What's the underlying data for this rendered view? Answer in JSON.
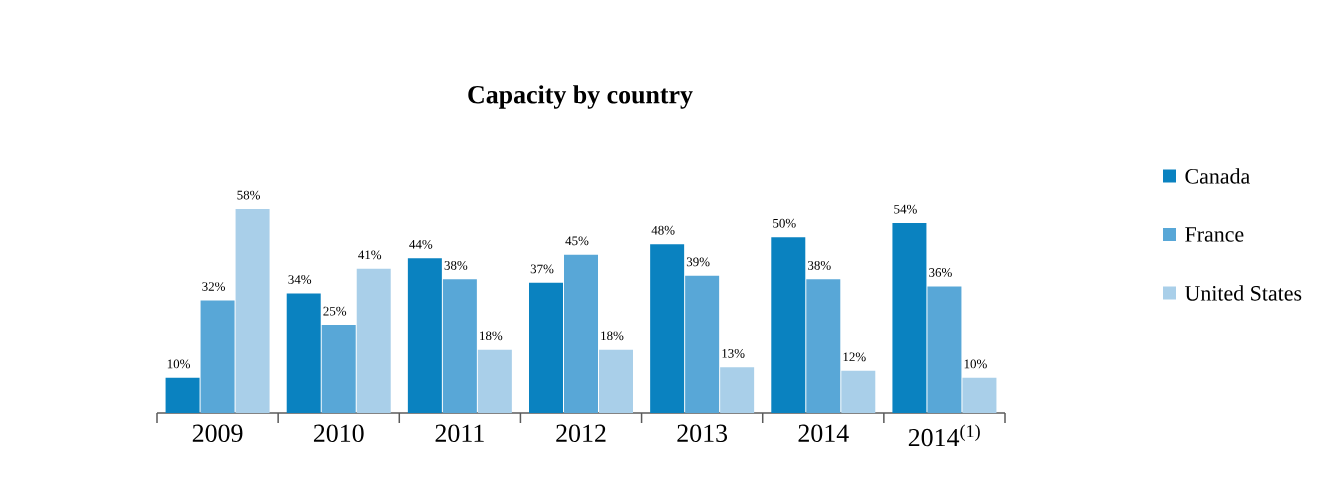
{
  "chart_data": {
    "type": "bar",
    "title": "Capacity by country",
    "categories": [
      "2009",
      "2010",
      "2011",
      "2012",
      "2013",
      "2014",
      "2014$^{(1)}$"
    ],
    "series": [
      {
        "name": "Canada",
        "color": "#0a82c0",
        "values": [
          10,
          34,
          44,
          37,
          48,
          50,
          54
        ],
        "value_labels": [
          "10%",
          "34%",
          "44%",
          "37%",
          "48%",
          "50%",
          "54%"
        ]
      },
      {
        "name": "France",
        "color": "#58a7d7",
        "values": [
          32,
          25,
          38,
          45,
          39,
          38,
          36
        ],
        "value_labels": [
          "32%",
          "25%",
          "38%",
          "45%",
          "39%",
          "38%",
          "36%"
        ]
      },
      {
        "name": "United States",
        "color": "#a9cfe9",
        "values": [
          58,
          41,
          18,
          18,
          13,
          12,
          10
        ],
        "value_labels": [
          "58%",
          "41%",
          "18%",
          "18%",
          "13%",
          "12%",
          "10%"
        ]
      }
    ],
    "legend": "right"
  }
}
